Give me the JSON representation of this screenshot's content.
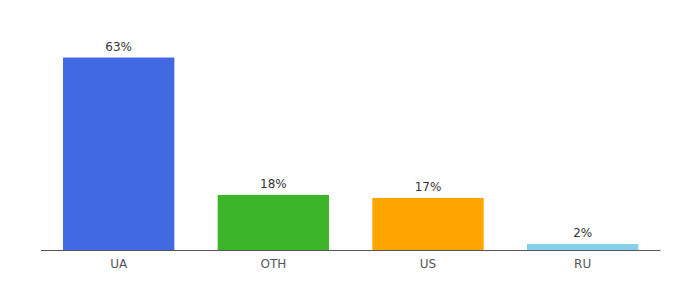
{
  "chart_data": {
    "type": "bar",
    "categories": [
      "UA",
      "OTH",
      "US",
      "RU"
    ],
    "values": [
      63,
      18,
      17,
      2
    ],
    "value_labels": [
      "63%",
      "18%",
      "17%",
      "2%"
    ],
    "colors": [
      "#4169E1",
      "#3CB528",
      "#FFA500",
      "#87CEEB"
    ],
    "ylim": [
      0,
      72
    ],
    "data_labels": true,
    "tick_labels": "x",
    "grid": false
  }
}
